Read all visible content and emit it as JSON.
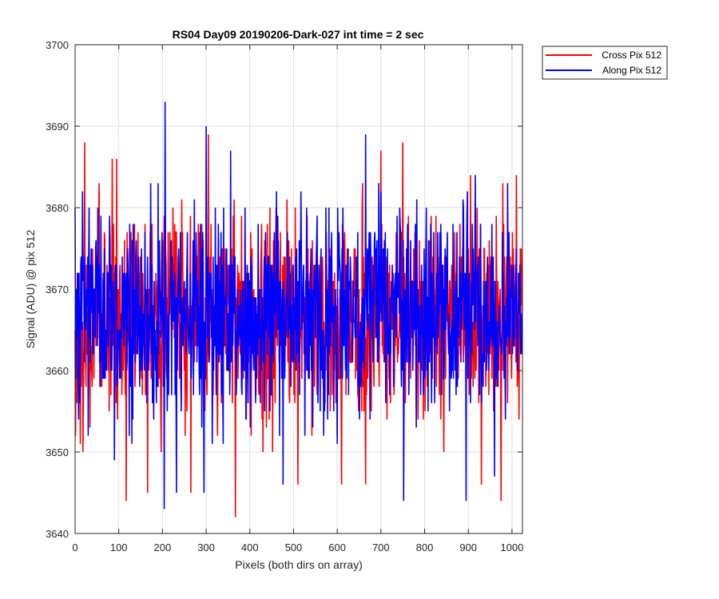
{
  "chart_data": {
    "type": "line",
    "title": "RS04 Day09 20190206-Dark-027 int time = 2 sec",
    "xlabel": "Pixels (both dirs on array)",
    "ylabel": "Signal (ADU) @ pix 512",
    "xlim": [
      0,
      1024
    ],
    "ylim": [
      3640,
      3700
    ],
    "xticks": [
      0,
      100,
      200,
      300,
      400,
      500,
      600,
      700,
      800,
      900,
      1000
    ],
    "yticks": [
      3640,
      3650,
      3660,
      3670,
      3680,
      3690,
      3700
    ],
    "grid": true,
    "legend_position": "outside-top-right",
    "noise_seed": 27,
    "series": [
      {
        "name": "Cross Pix 512",
        "color": "#ff0000",
        "baseline": 3666.5,
        "anchors": [
          [
            0,
            3665
          ],
          [
            12,
            3651
          ],
          [
            18,
            3650
          ],
          [
            22,
            3688
          ],
          [
            36,
            3660
          ],
          [
            55,
            3683
          ],
          [
            63,
            3667
          ],
          [
            85,
            3686
          ],
          [
            95,
            3686
          ],
          [
            117,
            3644
          ],
          [
            166,
            3645
          ],
          [
            197,
            3650
          ],
          [
            222,
            3669
          ],
          [
            250,
            3660
          ],
          [
            265,
            3645
          ],
          [
            305,
            3689
          ],
          [
            345,
            3662
          ],
          [
            367,
            3642
          ],
          [
            390,
            3673
          ],
          [
            440,
            3678
          ],
          [
            452,
            3650
          ],
          [
            510,
            3646
          ],
          [
            585,
            3670
          ],
          [
            610,
            3646
          ],
          [
            665,
            3646
          ],
          [
            700,
            3687
          ],
          [
            750,
            3688
          ],
          [
            800,
            3670
          ],
          [
            870,
            3670
          ],
          [
            905,
            3684
          ],
          [
            930,
            3646
          ],
          [
            975,
            3644
          ],
          [
            995,
            3662
          ],
          [
            1010,
            3684
          ],
          [
            1023,
            3665
          ]
        ]
      },
      {
        "name": "Along Pix 512",
        "color": "#0000ff",
        "baseline": 3667,
        "anchors": [
          [
            0,
            3680
          ],
          [
            8,
            3654
          ],
          [
            30,
            3652
          ],
          [
            40,
            3673
          ],
          [
            90,
            3649
          ],
          [
            110,
            3672
          ],
          [
            170,
            3664
          ],
          [
            190,
            3683
          ],
          [
            204,
            3643
          ],
          [
            206,
            3693
          ],
          [
            220,
            3676
          ],
          [
            232,
            3645
          ],
          [
            280,
            3671
          ],
          [
            295,
            3645
          ],
          [
            300,
            3690
          ],
          [
            325,
            3672
          ],
          [
            356,
            3687
          ],
          [
            370,
            3662
          ],
          [
            385,
            3661
          ],
          [
            430,
            3664
          ],
          [
            465,
            3676
          ],
          [
            476,
            3646
          ],
          [
            520,
            3668
          ],
          [
            555,
            3664
          ],
          [
            600,
            3651
          ],
          [
            622,
            3659
          ],
          [
            665,
            3689
          ],
          [
            675,
            3654
          ],
          [
            705,
            3675
          ],
          [
            745,
            3677
          ],
          [
            752,
            3644
          ],
          [
            790,
            3665
          ],
          [
            835,
            3677
          ],
          [
            895,
            3644
          ],
          [
            925,
            3669
          ],
          [
            960,
            3647
          ],
          [
            985,
            3654
          ],
          [
            1000,
            3671
          ],
          [
            1023,
            3662
          ]
        ]
      }
    ]
  }
}
